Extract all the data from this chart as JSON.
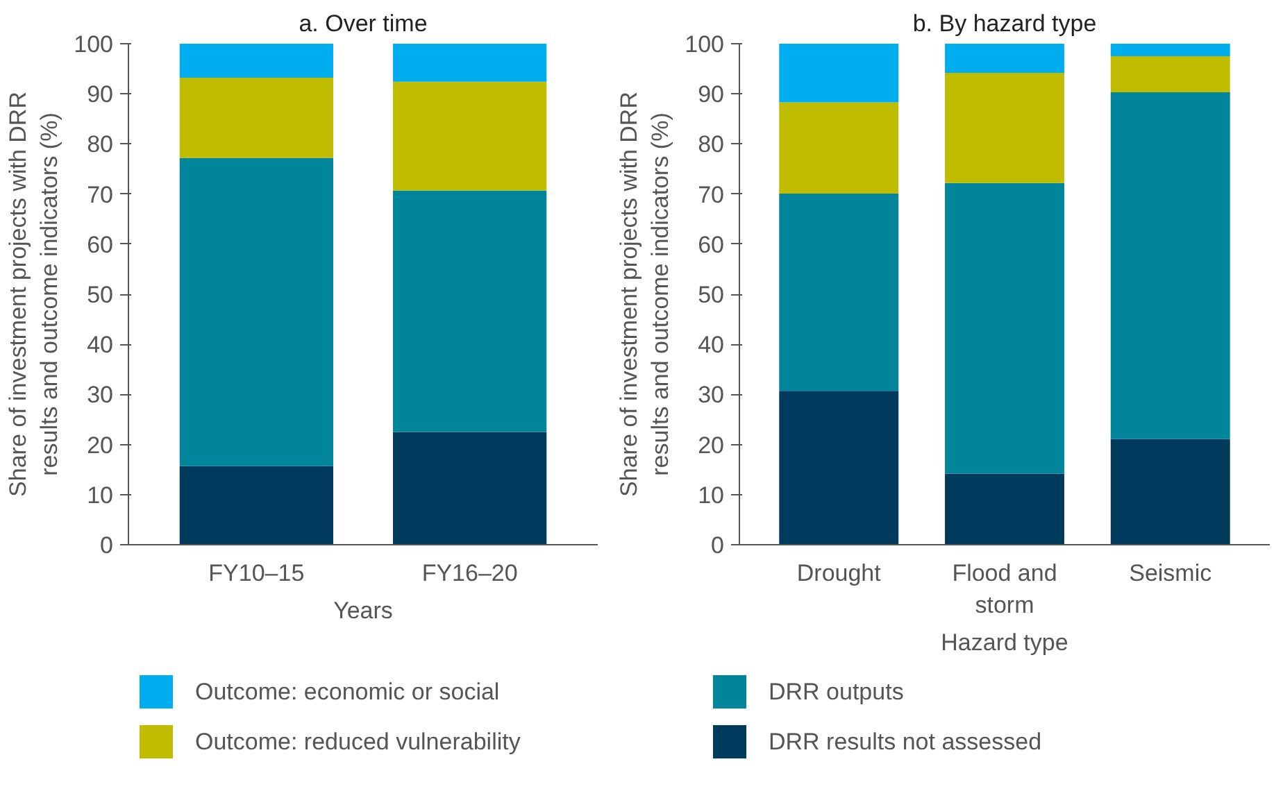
{
  "chart_data": [
    {
      "type": "bar",
      "title": "a. Over time",
      "xlabel": "Years",
      "ylabel": "Share of investment projects with DRR results and outcome indicators (%)",
      "categories": [
        "FY10–15",
        "FY16–20"
      ],
      "stacked": true,
      "ylim": [
        0,
        100
      ],
      "yticks": [
        0,
        10,
        20,
        30,
        40,
        50,
        60,
        70,
        80,
        90,
        100
      ],
      "grid": false,
      "legend": "bottom",
      "series": [
        {
          "name": "DRR results not assessed",
          "color": "#003a5d",
          "values": [
            15.7,
            22.5
          ]
        },
        {
          "name": "DRR outputs",
          "color": "#00859b",
          "values": [
            61.5,
            48.2
          ]
        },
        {
          "name": "Outcome: reduced vulnerability",
          "color": "#c0bd00",
          "values": [
            16.0,
            21.7
          ]
        },
        {
          "name": "Outcome: economic or social",
          "color": "#00aeef",
          "values": [
            6.8,
            7.6
          ]
        }
      ]
    },
    {
      "type": "bar",
      "title": "b. By hazard type",
      "xlabel": "Hazard type",
      "ylabel": "Share of investment projects with DRR results and outcome indicators (%)",
      "categories": [
        "Drought",
        "Flood and storm",
        "Seismic"
      ],
      "stacked": true,
      "ylim": [
        0,
        100
      ],
      "yticks": [
        0,
        10,
        20,
        30,
        40,
        50,
        60,
        70,
        80,
        90,
        100
      ],
      "grid": false,
      "series": [
        {
          "color": "#003a5d",
          "values": [
            30.7,
            14.2,
            21.1
          ]
        },
        {
          "color": "#00859b",
          "values": [
            39.4,
            58.0,
            69.2
          ]
        },
        {
          "color": "#c0bd00",
          "values": [
            18.2,
            22.0,
            7.2
          ]
        },
        {
          "color": "#00aeef",
          "values": [
            11.7,
            5.8,
            2.5
          ]
        }
      ]
    }
  ]
}
